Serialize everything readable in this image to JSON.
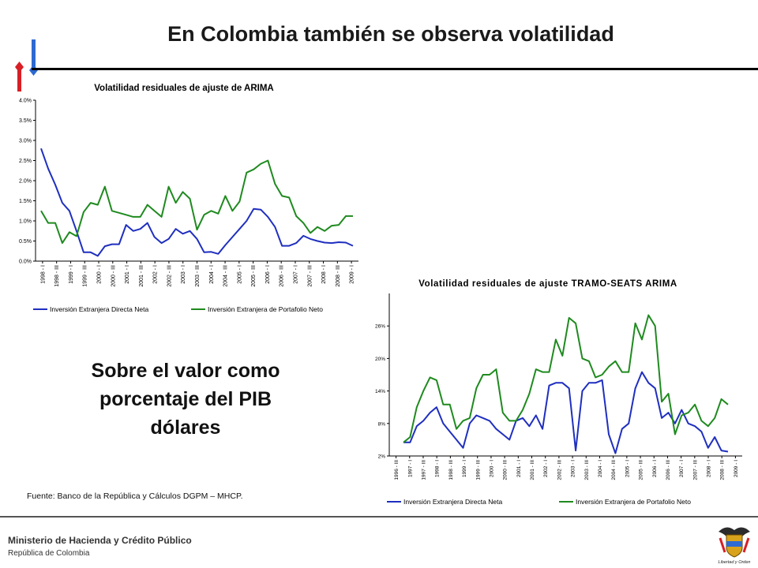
{
  "slide": {
    "title": "En Colombia también se observa volatilidad",
    "callout": [
      "Sobre el valor  como",
      "porcentaje del PIB",
      "dólares"
    ],
    "source": "Fuente: Banco de la República y Cálculos DGPM – MHCP.",
    "footer_ministry": "Ministerio de Hacienda y Crédito Público",
    "footer_republic": "República de Colombia",
    "logo_motto": "Libertad y Orden"
  },
  "colors": {
    "blue": "#1f2fbf",
    "green": "#1f8a1f",
    "logo_red": "#d81f26",
    "logo_blue": "#2d6ad2"
  },
  "chart_data": [
    {
      "type": "line",
      "title": "Volatilidad residuales de ajuste de ARIMA",
      "ylim": [
        0,
        4.0
      ],
      "yticks": [
        "0.0%",
        "0.5%",
        "1.0%",
        "1.5%",
        "2.0%",
        "2.5%",
        "3.0%",
        "3.5%",
        "4.0%"
      ],
      "x_tick_labels": [
        "1998 - I",
        "1998 - III",
        "1999 - I",
        "1999 - III",
        "2000 - I",
        "2000 - III",
        "2001 - I",
        "2001 - III",
        "2002 - I",
        "2002 - III",
        "2003 - I",
        "2003 - III",
        "2004 - I",
        "2004 - III",
        "2005 - I",
        "2005 - III",
        "2006 - I",
        "2006 - III",
        "2007 - I",
        "2007 - III",
        "2008 - I",
        "2008 - III",
        "2009 - I"
      ],
      "series": [
        {
          "name": "Inversión Extranjera Directa Neta",
          "color": "#1f2fbf",
          "values": [
            2.8,
            2.3,
            1.9,
            1.45,
            1.25,
            0.75,
            0.22,
            0.22,
            0.13,
            0.37,
            0.42,
            0.42,
            0.9,
            0.75,
            0.8,
            0.95,
            0.6,
            0.45,
            0.55,
            0.8,
            0.68,
            0.75,
            0.55,
            0.22,
            0.23,
            0.18,
            0.4,
            0.6,
            0.8,
            1.0,
            1.3,
            1.28,
            1.1,
            0.85,
            0.38,
            0.38,
            0.45,
            0.63,
            0.55,
            0.5,
            0.46,
            0.45,
            0.47,
            0.46,
            0.38
          ]
        },
        {
          "name": "Inversión Extranjera de Portafolio Neto",
          "color": "#1f8a1f",
          "values": [
            1.25,
            0.95,
            0.95,
            0.45,
            0.72,
            0.62,
            1.22,
            1.45,
            1.4,
            1.85,
            1.25,
            1.2,
            1.15,
            1.1,
            1.1,
            1.4,
            1.25,
            1.1,
            1.85,
            1.45,
            1.72,
            1.55,
            0.78,
            1.15,
            1.25,
            1.18,
            1.62,
            1.25,
            1.48,
            2.2,
            2.28,
            2.42,
            2.5,
            1.92,
            1.62,
            1.58,
            1.12,
            0.95,
            0.7,
            0.85,
            0.75,
            0.88,
            0.9,
            1.12,
            1.12
          ]
        }
      ]
    },
    {
      "type": "line",
      "title": "Volatilidad residuales de ajuste TRAMO-SEATS ARIMA",
      "ylim": [
        2,
        32
      ],
      "yticks": [
        "2%",
        "8%",
        "14%",
        "20%",
        "26%"
      ],
      "x_tick_labels": [
        "1996 - III",
        "1997 - I",
        "1997 - III",
        "1998 - I",
        "1998 - III",
        "1999 - I",
        "1999 - III",
        "2000 - I",
        "2000 - III",
        "2001 - I",
        "2001 - III",
        "2002 - I",
        "2002 - III",
        "2003 - I",
        "2003 - III",
        "2004 - I",
        "2004 - III",
        "2005 - I",
        "2005 - III",
        "2006 - I",
        "2006 - III",
        "2007 - I",
        "2007 - III",
        "2008 - I",
        "2008 - III",
        "2009 - I"
      ],
      "series": [
        {
          "name": "Inversión Extranjera Directa Neta",
          "color": "#1f2fbf",
          "values": [
            4.5,
            4.5,
            7.5,
            8.5,
            10,
            11,
            8,
            6.5,
            5,
            3.5,
            8,
            9.5,
            9,
            8.5,
            7,
            6,
            5,
            8.5,
            9,
            7.5,
            9.5,
            7,
            15,
            15.5,
            15.5,
            14.5,
            3,
            14,
            15.5,
            15.5,
            16,
            6,
            2.5,
            7,
            8,
            14.5,
            17.5,
            15.5,
            14.5,
            9,
            10,
            8,
            10.5,
            8,
            7.5,
            6.5,
            3.5,
            5.5,
            3,
            2.8
          ]
        },
        {
          "name": "Inversión Extranjera de Portafolio Neto",
          "color": "#1f8a1f",
          "values": [
            4.5,
            5.5,
            11,
            14,
            16.5,
            16,
            11.5,
            11.5,
            7,
            8.5,
            9,
            14.5,
            17,
            17,
            18,
            10,
            8.5,
            8.5,
            10.5,
            13.5,
            18,
            17.5,
            17.5,
            23.5,
            20.5,
            27.5,
            26.5,
            20,
            19.5,
            16.5,
            17,
            18.5,
            19.5,
            17.5,
            17.5,
            26.5,
            23.5,
            28,
            26,
            12,
            13.5,
            6,
            9.5,
            10,
            11.5,
            8.5,
            7.5,
            9,
            12.5,
            11.5
          ]
        }
      ]
    }
  ]
}
